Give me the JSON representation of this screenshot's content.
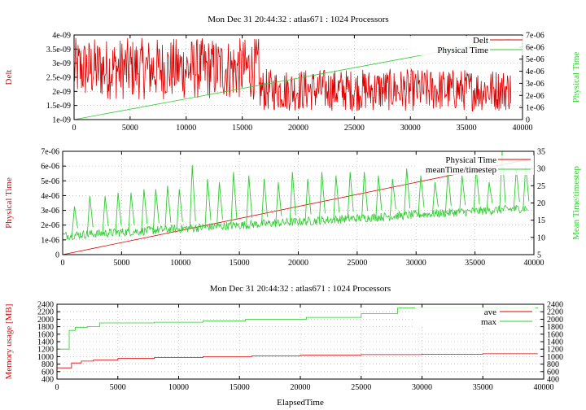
{
  "colors": {
    "red": "#dd0000",
    "green": "#2ecc2e",
    "grid": "#aaaaaa"
  },
  "chart_data": [
    {
      "type": "line",
      "title": "Mon Dec 31 20:44:32 : atlas671 : 1024 Processors",
      "xlabel": "",
      "ylabel_left": "Delt",
      "ylabel_right": "Physical Time",
      "xlim": [
        0,
        40000
      ],
      "ylim_left": [
        1e-09,
        4e-09
      ],
      "ylim_right": [
        0,
        7e-06
      ],
      "x_ticks": [
        "0",
        "5000",
        "10000",
        "15000",
        "20000",
        "25000",
        "30000",
        "35000",
        "40000"
      ],
      "y_ticks_left": [
        "1e-09",
        "1.5e-09",
        "2e-09",
        "2.5e-09",
        "3e-09",
        "3.5e-09",
        "4e-09"
      ],
      "y_ticks_right": [
        "0",
        "1e-06",
        "2e-06",
        "3e-06",
        "4e-06",
        "5e-06",
        "6e-06",
        "7e-06"
      ],
      "legend_position": "top-right",
      "grid": true,
      "series": [
        {
          "name": "Delt",
          "axis": "left",
          "color": "#dd0000",
          "kind": "noise",
          "segments": [
            {
              "x_start": 0,
              "x_end": 16500,
              "low": 1.7e-09,
              "high": 3.9e-09
            },
            {
              "x_start": 16500,
              "x_end": 39000,
              "low": 1.3e-09,
              "high": 2.8e-09
            }
          ]
        },
        {
          "name": "Physical Time",
          "axis": "right",
          "color": "#2ecc2e",
          "kind": "linear",
          "x": [
            0,
            39000
          ],
          "y": [
            0,
            6.7e-06
          ]
        }
      ]
    },
    {
      "type": "line",
      "title": "",
      "xlabel": "",
      "ylabel_left": "Physical Time",
      "ylabel_right": "Mean Time/timestep",
      "xlim": [
        0,
        40000
      ],
      "ylim_left": [
        0,
        7e-06
      ],
      "ylim_right": [
        5,
        35
      ],
      "x_ticks": [
        "0",
        "5000",
        "10000",
        "15000",
        "20000",
        "25000",
        "30000",
        "35000",
        "40000"
      ],
      "y_ticks_left": [
        "0",
        "1e-06",
        "2e-06",
        "3e-06",
        "4e-06",
        "5e-06",
        "6e-06",
        "7e-06"
      ],
      "y_ticks_right": [
        "5",
        "10",
        "15",
        "20",
        "25",
        "30",
        "35"
      ],
      "legend_position": "top-right",
      "grid": true,
      "series": [
        {
          "name": "Physical Time",
          "axis": "left",
          "color": "#dd0000",
          "kind": "linear",
          "x": [
            0,
            39500
          ],
          "y": [
            0,
            6.45e-06
          ]
        },
        {
          "name": "meanTime/timestep",
          "axis": "right",
          "color": "#2ecc2e",
          "kind": "spiky",
          "x_start": 0,
          "x_end": 39500,
          "base_start": 10.5,
          "base_end": 18.5,
          "spike_x": [
            1000,
            2300,
            3600,
            4700,
            5800,
            6900,
            7900,
            8900,
            9900,
            11000,
            12300,
            13300,
            14500,
            15800,
            17100,
            18300,
            19500,
            20800,
            22000,
            23200,
            24400,
            25600,
            26800,
            28000,
            29200,
            30400,
            31600,
            32700,
            33900,
            35100,
            36200,
            37300,
            38500,
            39300
          ],
          "spike_y": [
            19,
            22,
            22,
            23,
            23,
            24,
            24,
            25,
            24,
            31,
            27,
            26,
            29,
            28,
            27,
            26,
            29,
            27,
            29,
            28,
            29,
            29,
            28,
            27,
            30,
            28,
            26,
            29,
            28,
            30,
            26,
            35,
            30,
            31
          ]
        }
      ]
    },
    {
      "type": "line",
      "title": "Mon Dec 31 20:44:32 : atlas671 : 1024 Processors",
      "xlabel": "ElapsedTime",
      "ylabel_left": "Memory usage [MB]",
      "ylabel_right": "",
      "xlim": [
        0,
        40000
      ],
      "ylim_left": [
        400,
        2400
      ],
      "ylim_right": [
        400,
        2400
      ],
      "x_ticks": [
        "0",
        "5000",
        "10000",
        "15000",
        "20000",
        "25000",
        "30000",
        "35000",
        "40000"
      ],
      "y_ticks_left": [
        "400",
        "600",
        "800",
        "1000",
        "1200",
        "1400",
        "1600",
        "1800",
        "2000",
        "2200",
        "2400"
      ],
      "y_ticks_right": [
        "400",
        "600",
        "800",
        "1000",
        "1200",
        "1400",
        "1600",
        "1800",
        "2000",
        "2200",
        "2400"
      ],
      "legend_position": "top-right",
      "grid": true,
      "series": [
        {
          "name": "ave",
          "axis": "left",
          "color": "#dd0000",
          "kind": "step",
          "x": [
            0,
            600,
            1200,
            2000,
            3000,
            5000,
            8000,
            12000,
            16000,
            20000,
            25000,
            30000,
            35000,
            39500
          ],
          "y": [
            700,
            700,
            830,
            880,
            910,
            950,
            975,
            1000,
            1020,
            1040,
            1055,
            1065,
            1075,
            1080
          ]
        },
        {
          "name": "max",
          "axis": "left",
          "color": "#2ecc2e",
          "kind": "step",
          "x": [
            0,
            700,
            1000,
            1500,
            2500,
            3500,
            8000,
            12000,
            15500,
            20500,
            25000,
            28000,
            39500
          ],
          "y": [
            1200,
            1200,
            1700,
            1780,
            1800,
            1900,
            1920,
            1950,
            2000,
            2050,
            2150,
            2300,
            2310
          ]
        }
      ]
    }
  ]
}
